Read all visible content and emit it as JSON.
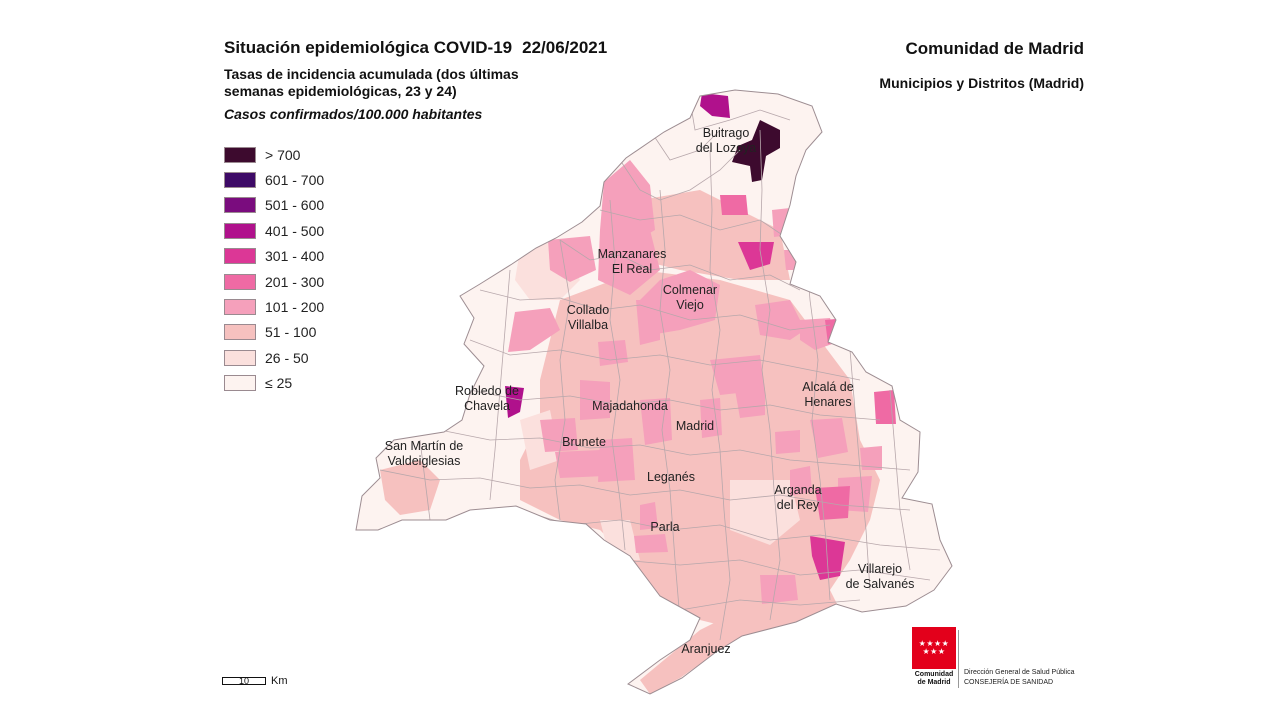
{
  "header": {
    "title": "Situación epidemiológica COVID-19",
    "date": "22/06/2021",
    "subtitle": "Tasas de incidencia acumulada (dos últimas semanas epidemiológicas, 23 y 24)",
    "units": "Casos confirmados/100.000 habitantes",
    "region": "Comunidad de Madrid",
    "region_sub": "Municipios y Distritos (Madrid)"
  },
  "legend": [
    {
      "label": "> 700",
      "color": "#3d0a2e"
    },
    {
      "label": "601 - 700",
      "color": "#3e0a66"
    },
    {
      "label": "501 - 600",
      "color": "#7a0c7e"
    },
    {
      "label": "401 - 500",
      "color": "#b0118c"
    },
    {
      "label": "301 - 400",
      "color": "#dc3796"
    },
    {
      "label": "201 - 300",
      "color": "#ef6aa4"
    },
    {
      "label": "101 - 200",
      "color": "#f5a0bb"
    },
    {
      "label": "51 - 100",
      "color": "#f6c1bf"
    },
    {
      "label": "26 - 50",
      "color": "#fbe0dd"
    },
    {
      "label": "≤ 25",
      "color": "#fdf3f0"
    }
  ],
  "places": [
    {
      "name": "Buitrago",
      "name2": "del Lozoya"
    },
    {
      "name": "Manzanares",
      "name2": "El Real"
    },
    {
      "name": "Colmenar",
      "name2": "Viejo"
    },
    {
      "name": "Collado",
      "name2": "Villalba"
    },
    {
      "name": "Robledo de",
      "name2": "Chavela"
    },
    {
      "name": "Majadahonda",
      "name2": ""
    },
    {
      "name": "Madrid",
      "name2": ""
    },
    {
      "name": "Alcalá de",
      "name2": "Henares"
    },
    {
      "name": "San Martín de",
      "name2": "Valdeiglesias"
    },
    {
      "name": "Brunete",
      "name2": ""
    },
    {
      "name": "Leganés",
      "name2": ""
    },
    {
      "name": "Arganda",
      "name2": "del Rey"
    },
    {
      "name": "Parla",
      "name2": ""
    },
    {
      "name": "Villarejo",
      "name2": "de Salvanés"
    },
    {
      "name": "Aranjuez",
      "name2": ""
    }
  ],
  "scale": {
    "value": "10",
    "unit": "Km"
  },
  "logo": {
    "name_line1": "Comunidad",
    "name_line2": "de Madrid"
  },
  "department": {
    "line1": "Dirección General de Salud Pública",
    "line2": "CONSEJERÍA DE SANIDAD"
  }
}
